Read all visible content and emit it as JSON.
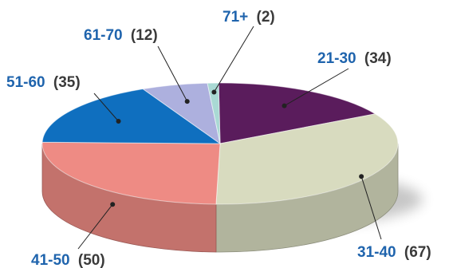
{
  "chart_data": {
    "type": "pie",
    "style": "3d",
    "slices": [
      {
        "label": "21-30",
        "value": 34,
        "color": "#5a1c5c"
      },
      {
        "label": "31-40",
        "value": 67,
        "color": "#d8dbbf"
      },
      {
        "label": "41-50",
        "value": 50,
        "color": "#ee8b84"
      },
      {
        "label": "51-60",
        "value": 35,
        "color": "#0f6fbf"
      },
      {
        "label": "61-70",
        "value": 12,
        "color": "#adb0de"
      },
      {
        "label": "71+",
        "value": 2,
        "color": "#a9d9d4"
      }
    ],
    "labels": [
      {
        "category": "21-30",
        "count": "(34)"
      },
      {
        "category": "31-40",
        "count": "(67)"
      },
      {
        "category": "41-50",
        "count": "(50)"
      },
      {
        "category": "51-60",
        "count": "(35)"
      },
      {
        "category": "61-70",
        "count": "(12)"
      },
      {
        "category": "71+",
        "count": "(2)"
      }
    ],
    "label_colors": {
      "category": "#1f64ad",
      "count": "#3a3a3a"
    }
  }
}
